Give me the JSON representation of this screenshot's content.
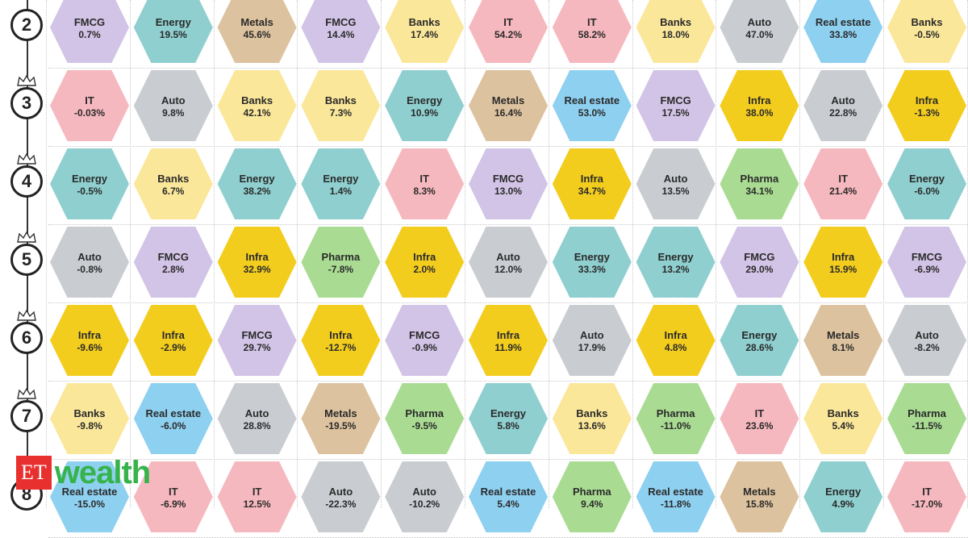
{
  "colors": {
    "FMCG": "#d2c4e6",
    "Energy": "#8fcfcf",
    "Metals": "#dcc29e",
    "Banks": "#fbe79a",
    "IT": "#f6b8bf",
    "Auto": "#c9cdd2",
    "Real estate": "#8ed0f0",
    "Infra": "#f3cd1e",
    "Pharma": "#a9dc92"
  },
  "logo": {
    "et": "ET",
    "wealth": "wealth"
  },
  "rows": [
    {
      "rank": "2",
      "cells": [
        {
          "sector": "FMCG",
          "value": "0.7%"
        },
        {
          "sector": "Energy",
          "value": "19.5%"
        },
        {
          "sector": "Metals",
          "value": "45.6%"
        },
        {
          "sector": "FMCG",
          "value": "14.4%"
        },
        {
          "sector": "Banks",
          "value": "17.4%"
        },
        {
          "sector": "IT",
          "value": "54.2%"
        },
        {
          "sector": "IT",
          "value": "58.2%"
        },
        {
          "sector": "Banks",
          "value": "18.0%"
        },
        {
          "sector": "Auto",
          "value": "47.0%"
        },
        {
          "sector": "Real estate",
          "value": "33.8%"
        },
        {
          "sector": "Banks",
          "value": "-0.5%"
        }
      ]
    },
    {
      "rank": "3",
      "cells": [
        {
          "sector": "IT",
          "value": "-0.03%"
        },
        {
          "sector": "Auto",
          "value": "9.8%"
        },
        {
          "sector": "Banks",
          "value": "42.1%"
        },
        {
          "sector": "Banks",
          "value": "7.3%"
        },
        {
          "sector": "Energy",
          "value": "10.9%"
        },
        {
          "sector": "Metals",
          "value": "16.4%"
        },
        {
          "sector": "Real estate",
          "value": "53.0%"
        },
        {
          "sector": "FMCG",
          "value": "17.5%"
        },
        {
          "sector": "Infra",
          "value": "38.0%"
        },
        {
          "sector": "Auto",
          "value": "22.8%"
        },
        {
          "sector": "Infra",
          "value": "-1.3%"
        }
      ]
    },
    {
      "rank": "4",
      "cells": [
        {
          "sector": "Energy",
          "value": "-0.5%"
        },
        {
          "sector": "Banks",
          "value": "6.7%"
        },
        {
          "sector": "Energy",
          "value": "38.2%"
        },
        {
          "sector": "Energy",
          "value": "1.4%"
        },
        {
          "sector": "IT",
          "value": "8.3%"
        },
        {
          "sector": "FMCG",
          "value": "13.0%"
        },
        {
          "sector": "Infra",
          "value": "34.7%"
        },
        {
          "sector": "Auto",
          "value": "13.5%"
        },
        {
          "sector": "Pharma",
          "value": "34.1%"
        },
        {
          "sector": "IT",
          "value": "21.4%"
        },
        {
          "sector": "Energy",
          "value": "-6.0%"
        }
      ]
    },
    {
      "rank": "5",
      "cells": [
        {
          "sector": "Auto",
          "value": "-0.8%"
        },
        {
          "sector": "FMCG",
          "value": "2.8%"
        },
        {
          "sector": "Infra",
          "value": "32.9%"
        },
        {
          "sector": "Pharma",
          "value": "-7.8%"
        },
        {
          "sector": "Infra",
          "value": "2.0%"
        },
        {
          "sector": "Auto",
          "value": "12.0%"
        },
        {
          "sector": "Energy",
          "value": "33.3%"
        },
        {
          "sector": "Energy",
          "value": "13.2%"
        },
        {
          "sector": "FMCG",
          "value": "29.0%"
        },
        {
          "sector": "Infra",
          "value": "15.9%"
        },
        {
          "sector": "FMCG",
          "value": "-6.9%"
        }
      ]
    },
    {
      "rank": "6",
      "cells": [
        {
          "sector": "Infra",
          "value": "-9.6%"
        },
        {
          "sector": "Infra",
          "value": "-2.9%"
        },
        {
          "sector": "FMCG",
          "value": "29.7%"
        },
        {
          "sector": "Infra",
          "value": "-12.7%"
        },
        {
          "sector": "FMCG",
          "value": "-0.9%"
        },
        {
          "sector": "Infra",
          "value": "11.9%"
        },
        {
          "sector": "Auto",
          "value": "17.9%"
        },
        {
          "sector": "Infra",
          "value": "4.8%"
        },
        {
          "sector": "Energy",
          "value": "28.6%"
        },
        {
          "sector": "Metals",
          "value": "8.1%"
        },
        {
          "sector": "Auto",
          "value": "-8.2%"
        }
      ]
    },
    {
      "rank": "7",
      "cells": [
        {
          "sector": "Banks",
          "value": "-9.8%"
        },
        {
          "sector": "Real estate",
          "value": "-6.0%"
        },
        {
          "sector": "Auto",
          "value": "28.8%"
        },
        {
          "sector": "Metals",
          "value": "-19.5%"
        },
        {
          "sector": "Pharma",
          "value": "-9.5%"
        },
        {
          "sector": "Energy",
          "value": "5.8%"
        },
        {
          "sector": "Banks",
          "value": "13.6%"
        },
        {
          "sector": "Pharma",
          "value": "-11.0%"
        },
        {
          "sector": "IT",
          "value": "23.6%"
        },
        {
          "sector": "Banks",
          "value": "5.4%"
        },
        {
          "sector": "Pharma",
          "value": "-11.5%"
        }
      ]
    },
    {
      "rank": "8",
      "cells": [
        {
          "sector": "Real estate",
          "value": "-15.0%"
        },
        {
          "sector": "IT",
          "value": "-6.9%"
        },
        {
          "sector": "IT",
          "value": "12.5%"
        },
        {
          "sector": "Auto",
          "value": "-22.3%"
        },
        {
          "sector": "Auto",
          "value": "-10.2%"
        },
        {
          "sector": "Real estate",
          "value": "5.4%"
        },
        {
          "sector": "Pharma",
          "value": "9.4%"
        },
        {
          "sector": "Real estate",
          "value": "-11.8%"
        },
        {
          "sector": "Metals",
          "value": "15.8%"
        },
        {
          "sector": "Energy",
          "value": "4.9%"
        },
        {
          "sector": "IT",
          "value": "-17.0%"
        }
      ]
    }
  ]
}
